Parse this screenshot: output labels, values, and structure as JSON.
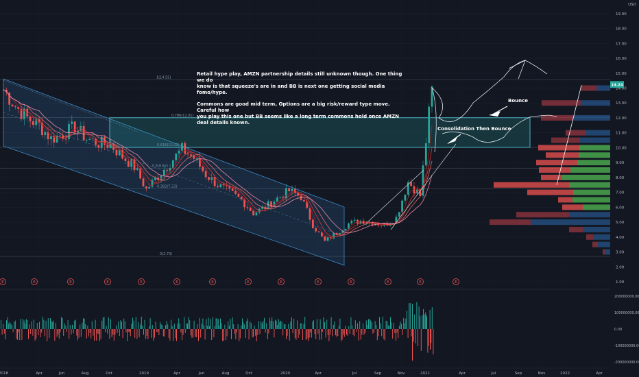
{
  "currency": "USD",
  "price_axis": {
    "ticks": [
      "19.00",
      "18.00",
      "17.00",
      "16.00",
      "15.00",
      "14.00",
      "13.00",
      "12.00",
      "11.00",
      "10.00",
      "9.00",
      "8.00",
      "7.00",
      "6.00",
      "5.00",
      "4.00",
      "3.00",
      "2.00",
      "1.00"
    ],
    "last_price": "14.24",
    "last_price_color": "#26a69a"
  },
  "volume_axis": {
    "ticks": [
      "200000000.00",
      "100000000.00",
      "0.00",
      "-100000000.00",
      "-200000000.00"
    ]
  },
  "time_axis": [
    "2018",
    "Apr",
    "Jun",
    "Aug",
    "Oct",
    "2019",
    "Apr",
    "Jun",
    "Aug",
    "Oct",
    "2020",
    "Apr",
    "Jul",
    "Sep",
    "Nov",
    "2021",
    "Apr",
    "Jul",
    "Sep",
    "Nov",
    "2022",
    "Apr"
  ],
  "fib_levels": [
    {
      "label": "1(14.55)",
      "price": 14.55
    },
    {
      "label": "0.786(12.01)",
      "price": 12.01
    },
    {
      "label": "0.618(10.02)",
      "price": 10.02
    },
    {
      "label": "0.5(8.62)",
      "price": 8.62
    },
    {
      "label": "0.382(7.23)",
      "price": 7.23
    },
    {
      "label": "0(2.70)",
      "price": 2.7
    }
  ],
  "annotations": {
    "main_note_line1": "Retail hype play, AMZN partnership details still unknown though. One thing we do",
    "main_note_line2": "know is that squeeze's are in and BB is next one getting social media fomo/hype.",
    "main_note_line3": "Commons are good mid term, Options are a big risk/reward type move. Careful how",
    "main_note_line4": "you play this one but BB seems like a long term commons hold once AMZN deal details known.",
    "bounce": "Bounce",
    "consolidation": "Consolidation Then Bounce"
  },
  "earnings_marker": "E",
  "chart_data": {
    "type": "line",
    "title": "",
    "xlabel": "",
    "ylabel": "USD",
    "ylim": [
      1,
      19
    ],
    "x": [
      "2018-01",
      "2018-02",
      "2018-03",
      "2018-04",
      "2018-05",
      "2018-06",
      "2018-07",
      "2018-08",
      "2018-09",
      "2018-10",
      "2018-11",
      "2018-12",
      "2019-01",
      "2019-02",
      "2019-03",
      "2019-04",
      "2019-05",
      "2019-06",
      "2019-07",
      "2019-08",
      "2019-09",
      "2019-10",
      "2019-11",
      "2019-12",
      "2020-01",
      "2020-02",
      "2020-03",
      "2020-04",
      "2020-05",
      "2020-06",
      "2020-07",
      "2020-08",
      "2020-09",
      "2020-10",
      "2020-11",
      "2020-12",
      "2021-01"
    ],
    "series": [
      {
        "values": [
          13.9,
          12.8,
          12.0,
          11.5,
          10.6,
          10.9,
          11.4,
          10.6,
          10.3,
          10.2,
          9.4,
          8.7,
          7.2,
          8.1,
          9.0,
          9.9,
          9.3,
          8.2,
          7.5,
          7.0,
          6.5,
          5.6,
          6.0,
          6.6,
          7.1,
          6.7,
          4.8,
          3.7,
          4.3,
          4.9,
          5.1,
          5.0,
          4.8,
          5.3,
          7.7,
          6.8,
          14.1
        ]
      }
    ],
    "fib_retracement": {
      "high": 14.55,
      "low": 2.7
    },
    "consolidation_zone": {
      "from": 10.02,
      "to": 12.01
    }
  }
}
